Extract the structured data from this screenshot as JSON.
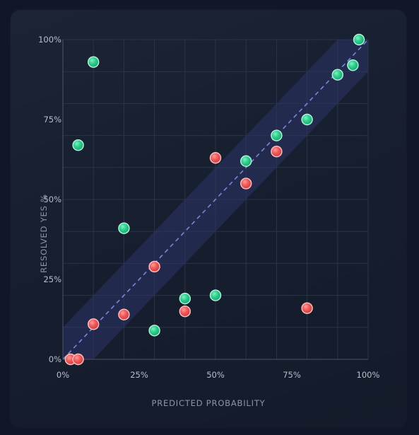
{
  "chart_data": {
    "type": "scatter",
    "title": "",
    "xlabel": "PREDICTED PROBABILITY",
    "ylabel": "RESOLVED YES %",
    "xlim": [
      0,
      100
    ],
    "ylim": [
      0,
      100
    ],
    "x_ticks": [
      "0%",
      "25%",
      "50%",
      "75%",
      "100%"
    ],
    "y_ticks": [
      "0%",
      "25%",
      "50%",
      "75%",
      "100%"
    ],
    "grid": true,
    "reference_line": "y = x",
    "band_halfwidth": 10,
    "colors": {
      "green": "#2ecf8f",
      "red": "#f25a5a",
      "band": "#2c3566",
      "diagonal": "#7b86d9"
    },
    "series": [
      {
        "color": "green",
        "points": [
          [
            10,
            93
          ],
          [
            5,
            67
          ],
          [
            20,
            41
          ],
          [
            30,
            9
          ],
          [
            40,
            19
          ],
          [
            50,
            20
          ],
          [
            60,
            62
          ],
          [
            70,
            70
          ],
          [
            80,
            75
          ],
          [
            90,
            89
          ],
          [
            95,
            92
          ],
          [
            97,
            100
          ]
        ]
      },
      {
        "color": "red",
        "points": [
          [
            2.5,
            0
          ],
          [
            5,
            0
          ],
          [
            10,
            11
          ],
          [
            20,
            14
          ],
          [
            30,
            29
          ],
          [
            40,
            15
          ],
          [
            50,
            63
          ],
          [
            60,
            55
          ],
          [
            70,
            65
          ],
          [
            80,
            16
          ]
        ]
      }
    ]
  }
}
